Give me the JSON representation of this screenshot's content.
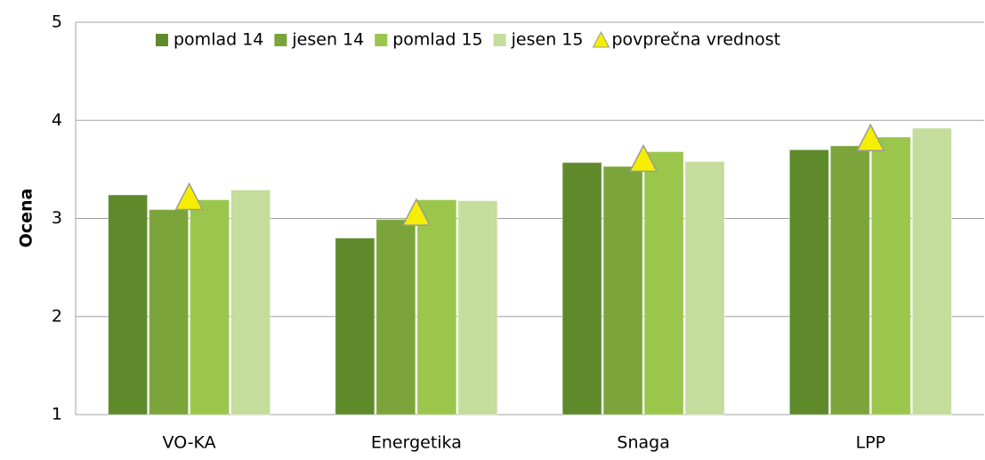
{
  "chart_data": {
    "type": "bar",
    "y_label": "Ocena",
    "categories": [
      "VO-KA",
      "Energetika",
      "Snaga",
      "LPP"
    ],
    "series": [
      {
        "name": "pomlad 14",
        "color": "#5f8a2c",
        "values": [
          3.24,
          2.8,
          3.57,
          3.7
        ]
      },
      {
        "name": "jesen 14",
        "color": "#7ba53b",
        "values": [
          3.09,
          2.99,
          3.53,
          3.74
        ]
      },
      {
        "name": "pomlad 15",
        "color": "#9bc64c",
        "values": [
          3.19,
          3.19,
          3.68,
          3.83
        ]
      },
      {
        "name": "jesen 15",
        "color": "#c4dc9c",
        "values": [
          3.29,
          3.18,
          3.58,
          3.92
        ]
      },
      {
        "name": "povprečna vrednost",
        "color": "#f5ee00",
        "marker": "triangle",
        "values": [
          3.2,
          3.04,
          3.59,
          3.8
        ]
      }
    ],
    "ylim": [
      1,
      5
    ],
    "yticks": [
      1,
      2,
      3,
      4,
      5
    ],
    "grid": true,
    "legend": "top"
  }
}
